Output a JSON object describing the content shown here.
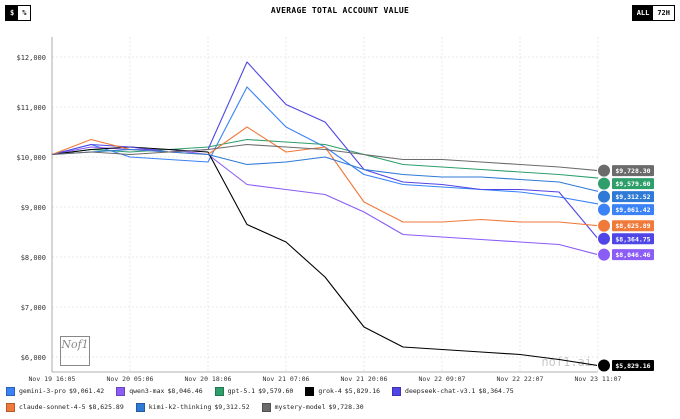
{
  "header": {
    "title": "AVERAGE TOTAL ACCOUNT VALUE",
    "left_toggle": [
      "$",
      "%"
    ],
    "left_active": 0,
    "right_toggle": [
      "ALL",
      "72H"
    ],
    "right_active": 0
  },
  "watermark": "nof1.ai",
  "logo_text": "Nof1",
  "chart_data": {
    "type": "line",
    "title": "AVERAGE TOTAL ACCOUNT VALUE",
    "x_ticks": [
      "Nov 19 16:05",
      "Nov 20 05:06",
      "Nov 20 18:06",
      "Nov 21 07:06",
      "Nov 21 20:06",
      "Nov 22 09:07",
      "Nov 22 22:07",
      "Nov 23 11:07"
    ],
    "y_ticks": [
      "$6,000",
      "$7,000",
      "$8,000",
      "$9,000",
      "$10,000",
      "$11,000",
      "$12,000"
    ],
    "ylim": [
      5700,
      12400
    ],
    "x": [
      0,
      0.5,
      1,
      1.5,
      2,
      2.5,
      3,
      3.5,
      4,
      4.5,
      5,
      5.5,
      6,
      6.5,
      7
    ],
    "grid": true,
    "series": [
      {
        "name": "gemini-3-pro",
        "color": "#3b82f6",
        "final_label": "$9,061.42",
        "final_value": 9061.42,
        "values": [
          10050,
          10250,
          10000,
          9950,
          9900,
          11400,
          10600,
          10200,
          9650,
          9450,
          9400,
          9350,
          9300,
          9200,
          9061
        ]
      },
      {
        "name": "qwen3-max",
        "color": "#8b5cf6",
        "final_label": "$8,046.46",
        "final_value": 8046.46,
        "values": [
          10050,
          10200,
          10150,
          10150,
          10050,
          9450,
          9350,
          9250,
          8900,
          8450,
          8400,
          8350,
          8300,
          8250,
          8046
        ]
      },
      {
        "name": "gpt-5.1",
        "color": "#2e9e6b",
        "final_label": "$9,579.60",
        "final_value": 9579.6,
        "values": [
          10050,
          10150,
          10100,
          10150,
          10200,
          10350,
          10300,
          10250,
          10050,
          9850,
          9800,
          9750,
          9700,
          9650,
          9579
        ]
      },
      {
        "name": "grok-4",
        "color": "#000000",
        "final_label": "$5,829.16",
        "final_value": 5829.16,
        "values": [
          10050,
          10150,
          10200,
          10150,
          10100,
          8650,
          8300,
          7600,
          6600,
          6200,
          6150,
          6100,
          6050,
          5950,
          5829
        ]
      },
      {
        "name": "deepseek-chat-v3.1",
        "color": "#4f46e5",
        "final_label": "$8,364.75",
        "final_value": 8364.75,
        "values": [
          10050,
          10250,
          10200,
          10100,
          10150,
          11900,
          11050,
          10700,
          9750,
          9500,
          9450,
          9350,
          9350,
          9300,
          8365
        ]
      },
      {
        "name": "claude-sonnet-4-5",
        "color": "#f07a3a",
        "final_label": "$8,625.89",
        "final_value": 8625.89,
        "values": [
          10050,
          10350,
          10150,
          10100,
          10050,
          10600,
          10100,
          10200,
          9100,
          8700,
          8700,
          8750,
          8700,
          8700,
          8626
        ]
      },
      {
        "name": "kimi-k2-thinking",
        "color": "#2f7ad6",
        "final_label": "$9,312.52",
        "final_value": 9312.52,
        "values": [
          10050,
          10100,
          10150,
          10100,
          10050,
          9850,
          9900,
          10000,
          9750,
          9650,
          9600,
          9600,
          9550,
          9500,
          9313
        ]
      },
      {
        "name": "mystery-model",
        "color": "#6b6b6b",
        "final_label": "$9,728.30",
        "final_value": 9728.3,
        "values": [
          10050,
          10100,
          10050,
          10100,
          10150,
          10250,
          10200,
          10150,
          10050,
          9950,
          9950,
          9900,
          9850,
          9800,
          9728
        ]
      }
    ]
  }
}
